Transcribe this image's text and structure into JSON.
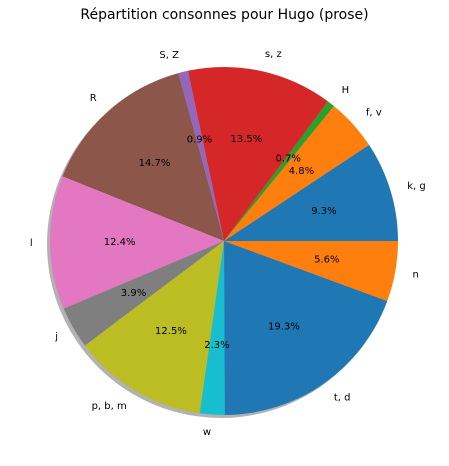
{
  "chart_data": {
    "type": "pie",
    "title": "Répartition consonnes pour Hugo (prose)",
    "shadow": true,
    "start_angle_deg": 0,
    "direction": "counterclockwise",
    "slices": [
      {
        "label": "k, g",
        "value": 9.3,
        "pct_label": "9.3%",
        "color": "#1f77b4"
      },
      {
        "label": "f, v",
        "value": 4.8,
        "pct_label": "4.8%",
        "color": "#ff7f0e"
      },
      {
        "label": "H",
        "value": 0.7,
        "pct_label": "0.7%",
        "color": "#2ca02c"
      },
      {
        "label": "s, z",
        "value": 13.5,
        "pct_label": "13.5%",
        "color": "#d62728"
      },
      {
        "label": "S, Z",
        "value": 0.9,
        "pct_label": "0.9%",
        "color": "#9467bd"
      },
      {
        "label": "R",
        "value": 14.7,
        "pct_label": "14.7%",
        "color": "#8c564b"
      },
      {
        "label": "l",
        "value": 12.4,
        "pct_label": "12.4%",
        "color": "#e377c2"
      },
      {
        "label": "j",
        "value": 3.9,
        "pct_label": "3.9%",
        "color": "#7f7f7f"
      },
      {
        "label": "p, b, m",
        "value": 12.5,
        "pct_label": "12.5%",
        "color": "#bcbd22"
      },
      {
        "label": "w",
        "value": 2.3,
        "pct_label": "2.3%",
        "color": "#17becf"
      },
      {
        "label": "t, d",
        "value": 19.3,
        "pct_label": "19.3%",
        "color": "#1f77b4"
      },
      {
        "label": "n",
        "value": 5.6,
        "pct_label": "5.6%",
        "color": "#ff7f0e"
      }
    ]
  }
}
